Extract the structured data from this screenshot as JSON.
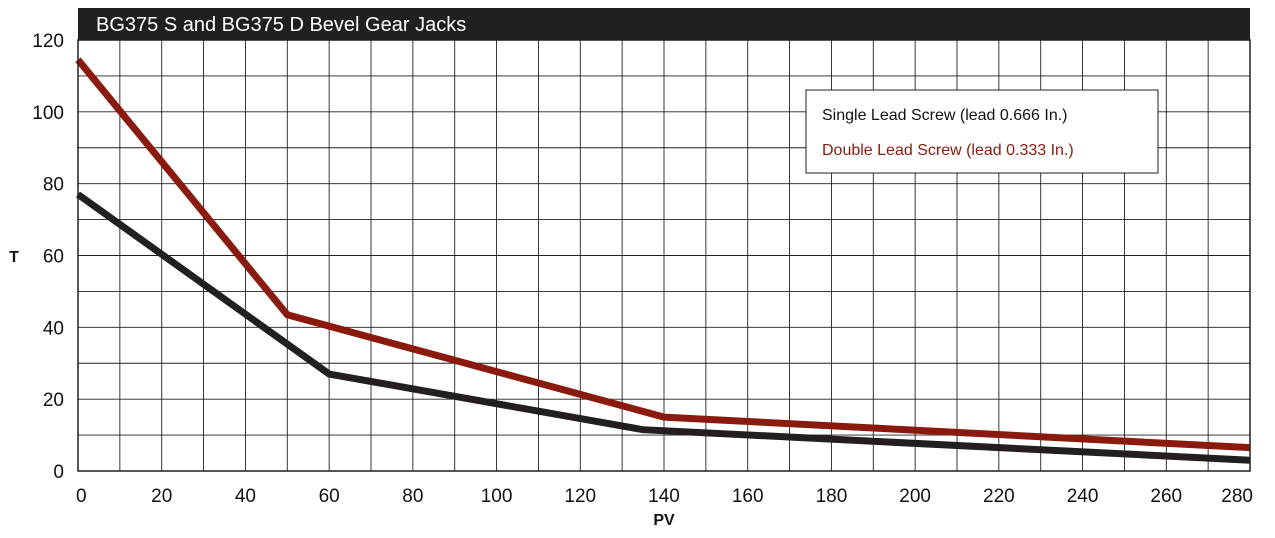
{
  "chart_data": {
    "type": "line",
    "title": "BG375 S and BG375 D Bevel Gear Jacks",
    "xlabel": "PV",
    "ylabel": "T",
    "xlim": [
      0,
      280
    ],
    "ylim": [
      0,
      120
    ],
    "x_ticks": [
      "0",
      "20",
      "40",
      "60",
      "80",
      "100",
      "120",
      "140",
      "160",
      "180",
      "200",
      "220",
      "240",
      "260",
      "280"
    ],
    "y_ticks": [
      "0",
      "20",
      "40",
      "60",
      "80",
      "100",
      "120"
    ],
    "grid": true,
    "legend_position": "top-right",
    "series": [
      {
        "name": "Single Lead Screw (lead 0.666 In.)",
        "color": "#231f20",
        "points": [
          [
            0,
            77
          ],
          [
            60,
            27
          ],
          [
            135,
            11.5
          ],
          [
            280,
            3
          ]
        ]
      },
      {
        "name": "Double Lead Screw (lead 0.333 In.)",
        "color": "#8b1a0e",
        "points": [
          [
            0,
            114.5
          ],
          [
            50,
            43.5
          ],
          [
            140,
            15
          ],
          [
            280,
            6.5
          ]
        ]
      }
    ]
  }
}
